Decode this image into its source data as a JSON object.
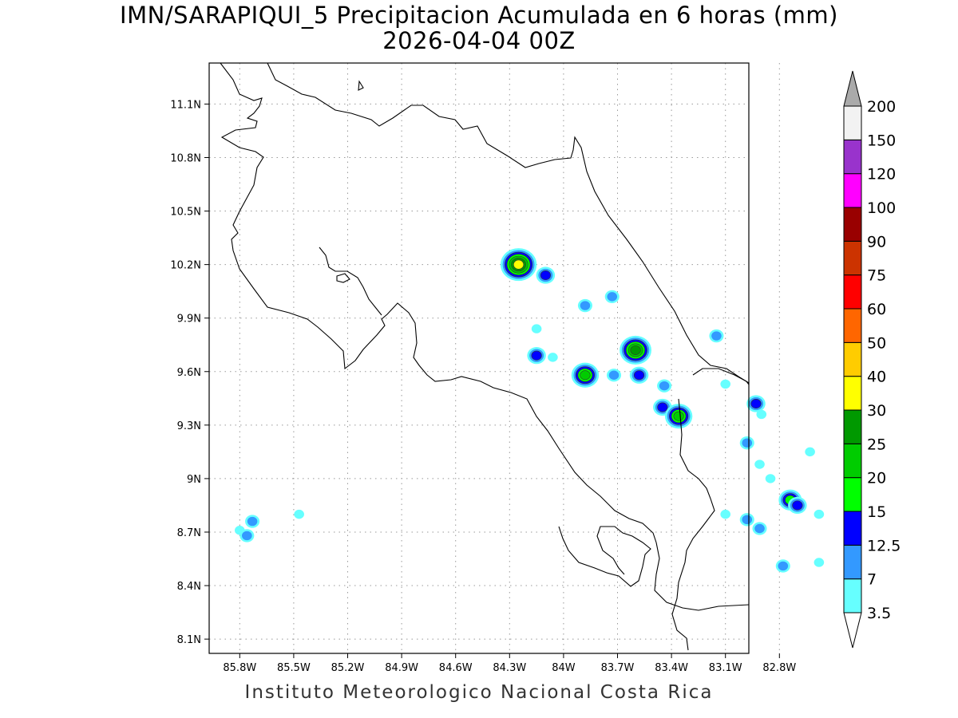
{
  "title": {
    "line1": "IMN/SARAPIQUI_5 Precipitacion Acumulada en 6 horas (mm)",
    "line2": "2026-04-04 00Z"
  },
  "footer": "Instituto Meteorologico Nacional Costa Rica",
  "map": {
    "lon_ticks": [
      "85.8W",
      "85.5W",
      "85.2W",
      "84.9W",
      "84.6W",
      "84.3W",
      "84W",
      "83.7W",
      "83.4W",
      "83.1W",
      "82.8W"
    ],
    "lon_values": [
      -85.8,
      -85.5,
      -85.2,
      -84.9,
      -84.6,
      -84.3,
      -84.0,
      -83.7,
      -83.4,
      -83.1,
      -82.8
    ],
    "lat_ticks": [
      "11.1N",
      "10.8N",
      "10.5N",
      "10.2N",
      "9.9N",
      "9.6N",
      "9.3N",
      "9N",
      "8.7N",
      "8.4N",
      "8.1N"
    ],
    "lat_values": [
      11.1,
      10.8,
      10.5,
      10.2,
      9.9,
      9.6,
      9.3,
      9.0,
      8.7,
      8.4,
      8.1
    ],
    "extent": {
      "lon_min": -85.97,
      "lon_max": -82.97,
      "lat_min": 8.02,
      "lat_max": 11.33
    },
    "grid": "dotted"
  },
  "colorbar": {
    "labels": [
      "3.5",
      "7",
      "12.5",
      "15",
      "20",
      "25",
      "30",
      "40",
      "50",
      "60",
      "75",
      "90",
      "100",
      "120",
      "150",
      "200"
    ],
    "colors": [
      "#ffffff",
      "#66ffff",
      "#3399ff",
      "#0000ff",
      "#00ff00",
      "#00cc00",
      "#009900",
      "#ffff00",
      "#ffcc00",
      "#ff6600",
      "#ff0000",
      "#cc3300",
      "#990000",
      "#ff00ff",
      "#9933cc",
      "#f2f2f2"
    ],
    "over_color": "#aaaaaa",
    "under_color": "#ffffff"
  },
  "precip_cells": [
    {
      "lon": -84.25,
      "lat": 10.2,
      "level": 7
    },
    {
      "lon": -84.1,
      "lat": 10.14,
      "level": 3
    },
    {
      "lon": -83.88,
      "lat": 9.97,
      "level": 2
    },
    {
      "lon": -83.73,
      "lat": 10.02,
      "level": 2
    },
    {
      "lon": -84.15,
      "lat": 9.84,
      "level": 1
    },
    {
      "lon": -83.6,
      "lat": 9.72,
      "level": 6
    },
    {
      "lon": -84.15,
      "lat": 9.69,
      "level": 3
    },
    {
      "lon": -84.06,
      "lat": 9.68,
      "level": 1
    },
    {
      "lon": -83.88,
      "lat": 9.58,
      "level": 5
    },
    {
      "lon": -83.72,
      "lat": 9.58,
      "level": 2
    },
    {
      "lon": -83.58,
      "lat": 9.58,
      "level": 3
    },
    {
      "lon": -83.44,
      "lat": 9.52,
      "level": 2
    },
    {
      "lon": -83.45,
      "lat": 9.4,
      "level": 3
    },
    {
      "lon": -83.36,
      "lat": 9.35,
      "level": 5
    },
    {
      "lon": -83.15,
      "lat": 9.8,
      "level": 2
    },
    {
      "lon": -82.93,
      "lat": 9.42,
      "level": 3
    },
    {
      "lon": -82.9,
      "lat": 9.36,
      "level": 1
    },
    {
      "lon": -82.98,
      "lat": 9.2,
      "level": 2
    },
    {
      "lon": -82.91,
      "lat": 9.08,
      "level": 1
    },
    {
      "lon": -82.74,
      "lat": 8.88,
      "level": 4
    },
    {
      "lon": -82.7,
      "lat": 8.85,
      "level": 3
    },
    {
      "lon": -82.98,
      "lat": 8.77,
      "level": 2
    },
    {
      "lon": -82.91,
      "lat": 8.72,
      "level": 2
    },
    {
      "lon": -82.78,
      "lat": 8.51,
      "level": 2
    },
    {
      "lon": -82.63,
      "lat": 9.15,
      "level": 1
    },
    {
      "lon": -82.58,
      "lat": 8.8,
      "level": 1
    },
    {
      "lon": -82.58,
      "lat": 8.53,
      "level": 1
    },
    {
      "lon": -85.8,
      "lat": 8.71,
      "level": 1
    },
    {
      "lon": -85.73,
      "lat": 8.76,
      "level": 2
    },
    {
      "lon": -85.76,
      "lat": 8.68,
      "level": 2
    },
    {
      "lon": -85.47,
      "lat": 8.8,
      "level": 1
    },
    {
      "lon": -83.1,
      "lat": 9.53,
      "level": 1
    },
    {
      "lon": -83.1,
      "lat": 8.8,
      "level": 1
    },
    {
      "lon": -82.85,
      "lat": 9.0,
      "level": 1
    }
  ]
}
